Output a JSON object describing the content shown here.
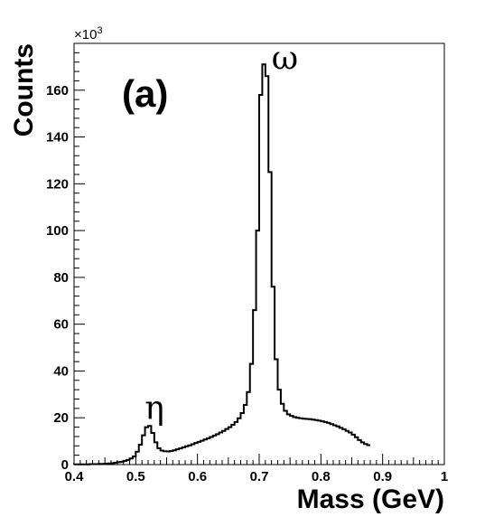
{
  "chart_data": {
    "type": "histogram",
    "panel_label": "(a)",
    "xlabel": "Mass (GeV)",
    "ylabel": "Counts",
    "y_multiplier": {
      "base": "×10",
      "exponent": "3"
    },
    "xlim": [
      0.4,
      1.0
    ],
    "ylim": [
      0,
      180
    ],
    "x_ticks": [
      0.4,
      0.5,
      0.6,
      0.7,
      0.8,
      0.9,
      1.0
    ],
    "x_tick_labels": [
      "0.4",
      "0.5",
      "0.6",
      "0.7",
      "0.8",
      "0.9",
      "1"
    ],
    "y_ticks": [
      0,
      20,
      40,
      60,
      80,
      100,
      120,
      140,
      160
    ],
    "y_tick_labels": [
      "0",
      "20",
      "40",
      "60",
      "80",
      "100",
      "120",
      "140",
      "160"
    ],
    "annotations": [
      {
        "text": "ω",
        "x": 0.763,
        "y": 169
      },
      {
        "text": "η",
        "x": 0.546,
        "y": 19.5
      }
    ],
    "bin_width": 0.005,
    "bin_edges_start": 0.4,
    "values": [
      0.1,
      0.1,
      0.1,
      0.1,
      0.1,
      0.2,
      0.2,
      0.2,
      0.3,
      0.3,
      0.4,
      0.5,
      0.6,
      0.8,
      1.0,
      1.2,
      1.6,
      2.0,
      2.6,
      3.5,
      5.5,
      8.5,
      12.5,
      16.0,
      16.5,
      13.5,
      9.5,
      7.0,
      6.0,
      5.7,
      5.6,
      5.8,
      6.1,
      6.5,
      6.9,
      7.4,
      7.8,
      8.2,
      8.7,
      9.2,
      9.7,
      10.2,
      10.7,
      11.2,
      11.8,
      12.4,
      13.0,
      13.7,
      14.4,
      15.2,
      16.0,
      17.0,
      18.2,
      19.8,
      22.0,
      25.5,
      31.0,
      43.0,
      66.0,
      100.0,
      158.0,
      171.0,
      166.0,
      125.0,
      76.0,
      45.0,
      32.0,
      26.0,
      23.0,
      21.5,
      20.8,
      20.3,
      20.0,
      19.8,
      19.6,
      19.5,
      19.4,
      19.2,
      19.0,
      18.8,
      18.5,
      18.2,
      17.8,
      17.3,
      16.8,
      16.3,
      15.7,
      15.1,
      14.4,
      13.7,
      12.8,
      11.7,
      10.5,
      9.5,
      8.8,
      8.3
    ]
  }
}
